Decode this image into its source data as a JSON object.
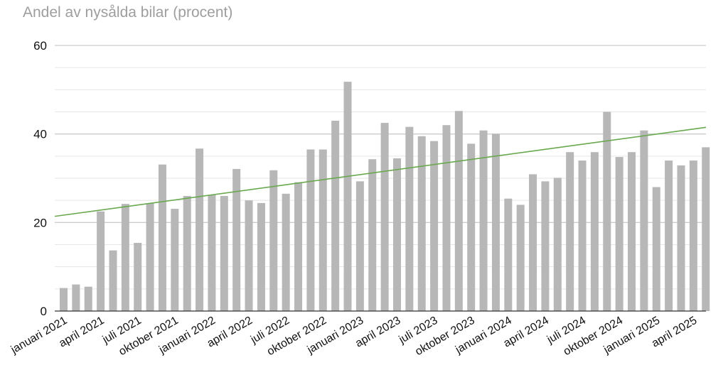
{
  "chart_data": {
    "type": "bar",
    "title": "Andel av nysålda bilar (procent)",
    "xlabel": "",
    "ylabel": "",
    "ylim": [
      0,
      60
    ],
    "yticks": [
      "0",
      "20",
      "40",
      "60"
    ],
    "grid": true,
    "legend": "none",
    "colors": {
      "bar": "#b7b7b7",
      "trend": "#6aa84f",
      "grid_major": "#cccccc",
      "grid_minor": "#e6e6e6",
      "axis": "#333333"
    },
    "categories": [
      "2021-01",
      "2021-02",
      "2021-03",
      "2021-04",
      "2021-05",
      "2021-06",
      "2021-07",
      "2021-08",
      "2021-09",
      "2021-10",
      "2021-11",
      "2021-12",
      "2022-01",
      "2022-02",
      "2022-03",
      "2022-04",
      "2022-05",
      "2022-06",
      "2022-07",
      "2022-08",
      "2022-09",
      "2022-10",
      "2022-11",
      "2022-12",
      "2023-01",
      "2023-02",
      "2023-03",
      "2023-04",
      "2023-05",
      "2023-06",
      "2023-07",
      "2023-08",
      "2023-09",
      "2023-10",
      "2023-11",
      "2023-12",
      "2024-01",
      "2024-02",
      "2024-03",
      "2024-04",
      "2024-05",
      "2024-06",
      "2024-07",
      "2024-08",
      "2024-09",
      "2024-10",
      "2024-11",
      "2024-12",
      "2025-01",
      "2025-02",
      "2025-03",
      "2025-04",
      "2025-05"
    ],
    "values": [
      5.2,
      6.0,
      5.5,
      22.5,
      13.7,
      24.2,
      15.4,
      24.3,
      33.1,
      23.1,
      26.0,
      36.7,
      26.2,
      26.0,
      32.1,
      25.0,
      24.4,
      31.8,
      26.5,
      29.1,
      36.5,
      36.5,
      43.0,
      51.8,
      29.3,
      34.3,
      42.5,
      34.5,
      41.6,
      39.5,
      38.4,
      42.0,
      45.2,
      37.8,
      40.8,
      40.0,
      25.4,
      24.0,
      30.9,
      29.3,
      30.1,
      35.9,
      34.0,
      35.9,
      45.0,
      34.8,
      35.9,
      40.8,
      28.0,
      34.0,
      32.9,
      34.0,
      37.0
    ],
    "xtick_labels": [
      {
        "index": 0,
        "label": "januari 2021"
      },
      {
        "index": 3,
        "label": "april 2021"
      },
      {
        "index": 6,
        "label": "juli 2021"
      },
      {
        "index": 9,
        "label": "oktober 2021"
      },
      {
        "index": 12,
        "label": "januari 2022"
      },
      {
        "index": 15,
        "label": "april 2022"
      },
      {
        "index": 18,
        "label": "juli 2022"
      },
      {
        "index": 21,
        "label": "oktober 2022"
      },
      {
        "index": 24,
        "label": "januari 2023"
      },
      {
        "index": 27,
        "label": "april 2023"
      },
      {
        "index": 30,
        "label": "juli 2023"
      },
      {
        "index": 33,
        "label": "oktober 2023"
      },
      {
        "index": 36,
        "label": "januari 2024"
      },
      {
        "index": 39,
        "label": "april 2024"
      },
      {
        "index": 42,
        "label": "juli 2024"
      },
      {
        "index": 45,
        "label": "oktober 2024"
      },
      {
        "index": 48,
        "label": "januari 2025"
      },
      {
        "index": 51,
        "label": "april 2025"
      }
    ],
    "trendline": {
      "type": "linear",
      "start_value": 21.4,
      "end_value": 41.5
    }
  }
}
